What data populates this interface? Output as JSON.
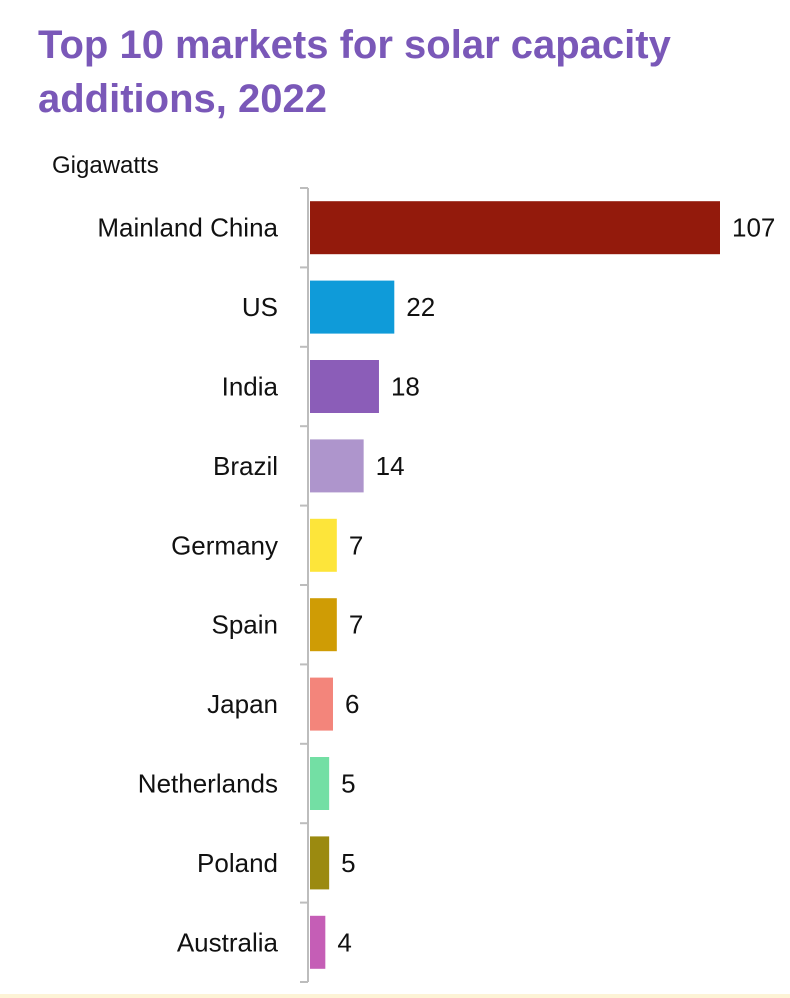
{
  "chart_data": {
    "type": "bar",
    "orientation": "horizontal",
    "title": "Top 10 markets for solar capacity additions, 2022",
    "unit_label": "Gigawatts",
    "xlim": [
      0,
      107
    ],
    "grid": false,
    "categories": [
      "Mainland China",
      "US",
      "India",
      "Brazil",
      "Germany",
      "Spain",
      "Japan",
      "Netherlands",
      "Poland",
      "Australia"
    ],
    "values": [
      107,
      22,
      18,
      14,
      7,
      7,
      6,
      5,
      5,
      4
    ],
    "data_labels": [
      "107",
      "22",
      "18",
      "14",
      "7",
      "7",
      "6",
      "5",
      "5",
      "4"
    ],
    "colors": [
      "#931a0c",
      "#0f9bd9",
      "#8b5db8",
      "#ae95cc",
      "#fde53a",
      "#cf9c05",
      "#f3857b",
      "#73dfa4",
      "#9b8a10",
      "#c55eb6"
    ]
  }
}
